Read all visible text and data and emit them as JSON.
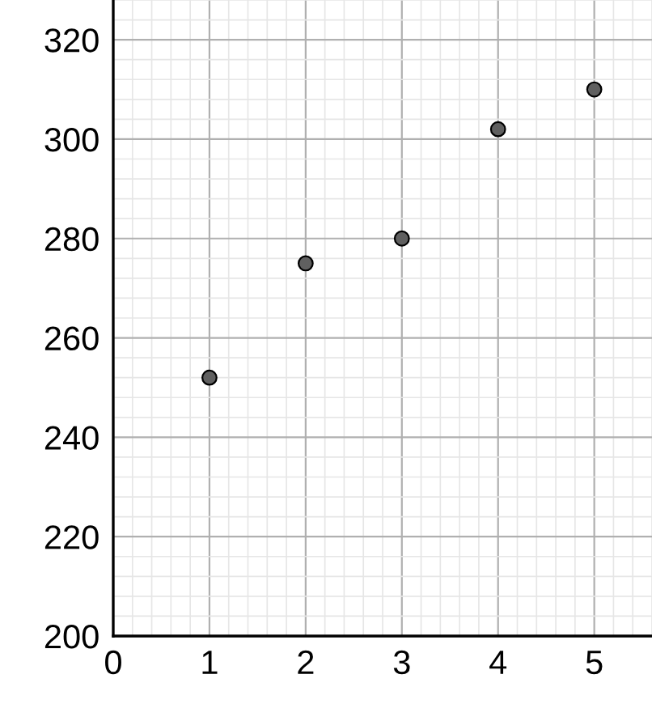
{
  "chart_data": {
    "type": "scatter",
    "x": [
      1,
      2,
      3,
      4,
      5
    ],
    "series": [
      {
        "color": "#606060",
        "values": [
          252,
          275,
          280,
          302,
          310
        ]
      }
    ],
    "xlim": [
      0,
      5.6
    ],
    "ylim": [
      200,
      328
    ],
    "xticks": [
      0,
      1,
      2,
      3,
      4,
      5
    ],
    "yticks": [
      200,
      220,
      240,
      260,
      280,
      300,
      320
    ],
    "grid": true,
    "marker": "circle"
  }
}
